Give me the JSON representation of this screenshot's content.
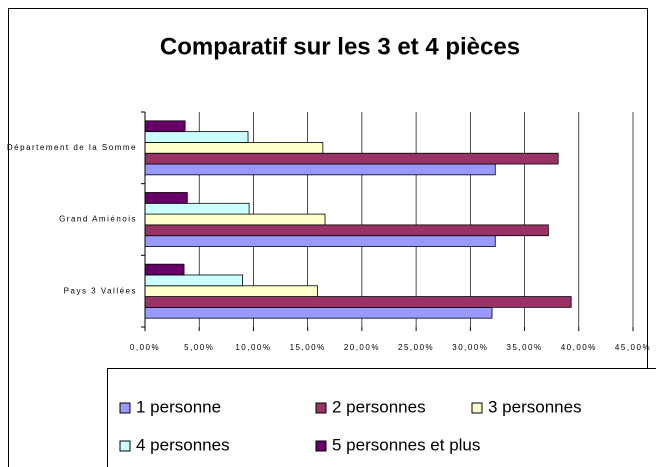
{
  "chart_data": {
    "type": "barh",
    "title": "Comparatif sur les 3 et 4 pièces",
    "categories": [
      "Département de la Somme",
      "Grand Amiénois",
      "Pays 3 Vallées"
    ],
    "series": [
      {
        "name": "1 personne",
        "color": "#9999ff",
        "values": [
          32.3,
          32.3,
          32.0
        ]
      },
      {
        "name": "2 personnes",
        "color": "#993366",
        "values": [
          38.1,
          37.2,
          39.3
        ]
      },
      {
        "name": "3 personnes",
        "color": "#ffffcc",
        "values": [
          16.4,
          16.6,
          15.9
        ]
      },
      {
        "name": "4 personnes",
        "color": "#ccffff",
        "values": [
          9.5,
          9.6,
          9.0
        ]
      },
      {
        "name": "5 personnes et plus",
        "color": "#660066",
        "values": [
          3.7,
          3.9,
          3.6
        ]
      }
    ],
    "xlim": [
      0,
      45
    ],
    "xticks": [
      {
        "value": 0,
        "label": "0,00%"
      },
      {
        "value": 5,
        "label": "5,00%"
      },
      {
        "value": 10,
        "label": "10,00%"
      },
      {
        "value": 15,
        "label": "15,00%"
      },
      {
        "value": 20,
        "label": "20,00%"
      },
      {
        "value": 25,
        "label": "25,00%"
      },
      {
        "value": 30,
        "label": "30,00%"
      },
      {
        "value": 35,
        "label": "35,00%"
      },
      {
        "value": 40,
        "label": "40,00%"
      },
      {
        "value": 45,
        "label": "45,00%"
      }
    ],
    "grid": true,
    "legend": "bottom"
  }
}
